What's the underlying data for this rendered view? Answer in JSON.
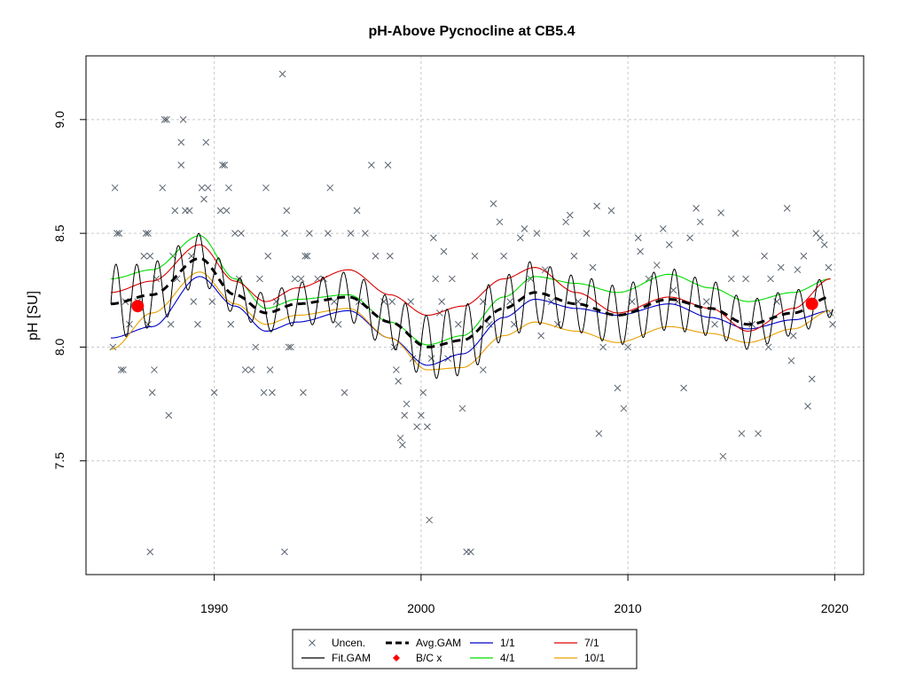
{
  "chart_data": {
    "type": "scatter",
    "title": "pH-Above Pycnocline at CB5.4",
    "xlabel": "",
    "ylabel": "pH [SU]",
    "xlim": [
      1983.8,
      2021.4
    ],
    "ylim": [
      7.0,
      9.28
    ],
    "x_ticks": [
      1990,
      2000,
      2010,
      2020
    ],
    "x_tick_labels": [
      "1990",
      "2000",
      "2010",
      "2020"
    ],
    "y_ticks": [
      7.5,
      8.0,
      8.5,
      9.0
    ],
    "y_tick_labels": [
      "7.5",
      "8.0",
      "8.5",
      "9.0"
    ],
    "grid": true,
    "legend_position": "bottom-center",
    "legend": [
      {
        "label": "Uncen.",
        "kind": "cross",
        "color": "#5a6470"
      },
      {
        "label": "Fit.GAM",
        "kind": "line",
        "color": "#000000"
      },
      {
        "label": "Avg.GAM",
        "kind": "dash",
        "color": "#000000"
      },
      {
        "label": "B/C x",
        "kind": "diamond",
        "color": "#ff0000"
      },
      {
        "label": "1/1",
        "kind": "line",
        "color": "#0000cc"
      },
      {
        "label": "4/1",
        "kind": "line",
        "color": "#00dd00"
      },
      {
        "label": "7/1",
        "kind": "line",
        "color": "#dd0000"
      },
      {
        "label": "10/1",
        "kind": "line",
        "color": "#e8a000"
      }
    ],
    "avg_gam": {
      "name": "Avg.GAM",
      "x": [
        1985.0,
        1987.0,
        1989.3,
        1991.0,
        1992.5,
        1994.0,
        1996.5,
        1998.5,
        2000.3,
        2002.0,
        2004.0,
        2005.5,
        2007.5,
        2009.5,
        2012.0,
        2014.0,
        2015.8,
        2018.0,
        2019.8
      ],
      "y": [
        8.19,
        8.23,
        8.39,
        8.23,
        8.15,
        8.19,
        8.22,
        8.11,
        8.0,
        8.03,
        8.17,
        8.24,
        8.19,
        8.14,
        8.21,
        8.17,
        8.1,
        8.15,
        8.22
      ]
    },
    "seasonal": [
      {
        "name": "1/1",
        "color": "#0000cc",
        "x": [
          1985.0,
          1987.0,
          1989.3,
          1991.0,
          1992.5,
          1994.0,
          1996.5,
          1998.5,
          2000.3,
          2002.0,
          2004.0,
          2005.5,
          2007.5,
          2009.5,
          2012.0,
          2014.0,
          2015.8,
          2018.0,
          2019.8
        ],
        "y": [
          8.04,
          8.09,
          8.31,
          8.18,
          8.07,
          8.11,
          8.16,
          8.04,
          7.92,
          7.97,
          8.13,
          8.21,
          8.17,
          8.14,
          8.19,
          8.13,
          8.08,
          8.12,
          8.16
        ]
      },
      {
        "name": "4/1",
        "color": "#00dd00",
        "x": [
          1985.0,
          1987.0,
          1989.3,
          1991.0,
          1992.5,
          1994.0,
          1996.5,
          1998.5,
          2000.3,
          2002.0,
          2004.0,
          2005.5,
          2007.5,
          2009.5,
          2012.0,
          2014.0,
          2015.8,
          2018.0,
          2019.8
        ],
        "y": [
          8.3,
          8.34,
          8.49,
          8.3,
          8.17,
          8.21,
          8.23,
          8.11,
          8.01,
          8.05,
          8.22,
          8.31,
          8.28,
          8.24,
          8.32,
          8.26,
          8.2,
          8.24,
          8.3
        ]
      },
      {
        "name": "7/1",
        "color": "#dd0000",
        "x": [
          1985.0,
          1987.0,
          1989.3,
          1991.0,
          1992.5,
          1994.0,
          1996.5,
          1998.5,
          2000.3,
          2002.0,
          2004.0,
          2005.5,
          2007.5,
          2009.5,
          2012.0,
          2014.0,
          2015.8,
          2018.0,
          2019.8
        ],
        "y": [
          8.24,
          8.29,
          8.45,
          8.29,
          8.2,
          8.26,
          8.34,
          8.23,
          8.14,
          8.18,
          8.3,
          8.35,
          8.24,
          8.15,
          8.22,
          8.17,
          8.07,
          8.17,
          8.3
        ]
      },
      {
        "name": "10/1",
        "color": "#e8a000",
        "x": [
          1985.0,
          1987.0,
          1989.3,
          1991.0,
          1992.5,
          1994.0,
          1996.5,
          1998.5,
          2000.3,
          2002.0,
          2004.0,
          2005.5,
          2007.5,
          2009.5,
          2012.0,
          2014.0,
          2015.8,
          2018.0,
          2019.8
        ],
        "y": [
          7.99,
          8.15,
          8.33,
          8.19,
          8.1,
          8.14,
          8.17,
          8.04,
          7.9,
          7.91,
          8.05,
          8.11,
          8.07,
          8.02,
          8.09,
          8.06,
          8.02,
          8.08,
          8.16
        ]
      }
    ],
    "fit_gam": {
      "name": "Fit.GAM",
      "start": 1985.0,
      "end": 2019.9,
      "period_years": 1.0
    },
    "bc_points": [
      {
        "x": 1986.3,
        "y": 8.18
      },
      {
        "x": 2018.9,
        "y": 8.19
      }
    ],
    "observations": [
      [
        1985.2,
        8.7
      ],
      [
        1985.3,
        8.5
      ],
      [
        1985.4,
        8.5
      ],
      [
        1985.1,
        8.0
      ],
      [
        1985.5,
        7.9
      ],
      [
        1985.6,
        7.9
      ],
      [
        1985.7,
        8.2
      ],
      [
        1985.9,
        8.1
      ],
      [
        1986.3,
        8.2
      ],
      [
        1986.6,
        8.4
      ],
      [
        1986.7,
        8.5
      ],
      [
        1986.8,
        8.5
      ],
      [
        1986.8,
        8.1
      ],
      [
        1986.9,
        8.4
      ],
      [
        1987.0,
        7.8
      ],
      [
        1987.1,
        7.9
      ],
      [
        1987.2,
        8.3
      ],
      [
        1986.9,
        7.1
      ],
      [
        1987.5,
        8.7
      ],
      [
        1987.6,
        9.0
      ],
      [
        1987.7,
        9.0
      ],
      [
        1987.8,
        7.7
      ],
      [
        1987.9,
        8.1
      ],
      [
        1988.0,
        8.4
      ],
      [
        1988.1,
        8.6
      ],
      [
        1988.2,
        8.3
      ],
      [
        1988.4,
        8.8
      ],
      [
        1988.4,
        8.9
      ],
      [
        1988.5,
        9.0
      ],
      [
        1988.6,
        8.6
      ],
      [
        1988.8,
        8.6
      ],
      [
        1988.9,
        8.4
      ],
      [
        1989.0,
        8.2
      ],
      [
        1989.2,
        8.1
      ],
      [
        1989.4,
        8.7
      ],
      [
        1989.5,
        8.65
      ],
      [
        1989.6,
        8.9
      ],
      [
        1989.7,
        8.7
      ],
      [
        1989.9,
        8.2
      ],
      [
        1990.0,
        7.8
      ],
      [
        1990.3,
        8.6
      ],
      [
        1990.4,
        8.8
      ],
      [
        1990.5,
        8.8
      ],
      [
        1990.6,
        8.6
      ],
      [
        1990.7,
        8.7
      ],
      [
        1990.8,
        8.1
      ],
      [
        1991.0,
        8.5
      ],
      [
        1991.2,
        8.3
      ],
      [
        1991.3,
        8.5
      ],
      [
        1991.5,
        7.9
      ],
      [
        1991.8,
        7.9
      ],
      [
        1992.0,
        8.0
      ],
      [
        1992.2,
        8.3
      ],
      [
        1992.4,
        7.8
      ],
      [
        1992.5,
        8.7
      ],
      [
        1992.6,
        8.4
      ],
      [
        1992.7,
        7.9
      ],
      [
        1992.8,
        7.8
      ],
      [
        1993.0,
        8.2
      ],
      [
        1993.3,
        9.2
      ],
      [
        1993.4,
        8.5
      ],
      [
        1993.5,
        8.6
      ],
      [
        1993.6,
        8.0
      ],
      [
        1993.7,
        8.0
      ],
      [
        1993.4,
        7.1
      ],
      [
        1993.9,
        8.3
      ],
      [
        1994.2,
        8.3
      ],
      [
        1994.3,
        7.8
      ],
      [
        1994.4,
        8.4
      ],
      [
        1994.5,
        8.4
      ],
      [
        1994.6,
        8.5
      ],
      [
        1995.0,
        8.3
      ],
      [
        1995.3,
        8.3
      ],
      [
        1995.5,
        8.5
      ],
      [
        1995.6,
        8.7
      ],
      [
        1995.8,
        8.2
      ],
      [
        1996.0,
        8.1
      ],
      [
        1996.3,
        7.8
      ],
      [
        1996.6,
        8.5
      ],
      [
        1996.9,
        8.6
      ],
      [
        1997.0,
        8.2
      ],
      [
        1997.3,
        8.5
      ],
      [
        1997.6,
        8.8
      ],
      [
        1997.8,
        8.4
      ],
      [
        1998.2,
        8.2
      ],
      [
        1998.4,
        8.8
      ],
      [
        1998.5,
        8.4
      ],
      [
        1998.6,
        8.2
      ],
      [
        1998.7,
        8.0
      ],
      [
        1998.8,
        7.9
      ],
      [
        1998.9,
        7.85
      ],
      [
        1999.0,
        7.6
      ],
      [
        1999.1,
        7.57
      ],
      [
        1999.2,
        7.7
      ],
      [
        1999.3,
        7.75
      ],
      [
        1999.5,
        8.2
      ],
      [
        1999.6,
        7.95
      ],
      [
        1999.8,
        7.65
      ],
      [
        2000.0,
        7.7
      ],
      [
        2000.1,
        7.8
      ],
      [
        2000.3,
        7.65
      ],
      [
        2000.4,
        7.24
      ],
      [
        2000.5,
        7.95
      ],
      [
        2000.6,
        8.48
      ],
      [
        2000.7,
        8.3
      ],
      [
        2001.0,
        8.2
      ],
      [
        2001.1,
        8.42
      ],
      [
        2001.5,
        8.3
      ],
      [
        2001.8,
        8.1
      ],
      [
        2002.0,
        7.73
      ],
      [
        2002.2,
        7.1
      ],
      [
        2002.4,
        7.1
      ],
      [
        2002.6,
        8.4
      ],
      [
        2003.0,
        8.2
      ],
      [
        2003.3,
        8.1
      ],
      [
        2003.5,
        8.63
      ],
      [
        2003.8,
        8.55
      ],
      [
        2004.0,
        8.4
      ],
      [
        2004.3,
        8.2
      ],
      [
        2004.5,
        8.1
      ],
      [
        2004.8,
        8.48
      ],
      [
        2005.0,
        8.52
      ],
      [
        2005.3,
        8.3
      ],
      [
        2005.6,
        8.5
      ],
      [
        2006.0,
        8.34
      ],
      [
        2006.3,
        8.2
      ],
      [
        2006.6,
        8.1
      ],
      [
        2007.0,
        8.55
      ],
      [
        2007.2,
        8.58
      ],
      [
        2007.4,
        8.4
      ],
      [
        2007.6,
        8.2
      ],
      [
        2008.0,
        8.5
      ],
      [
        2008.3,
        8.35
      ],
      [
        2008.5,
        8.62
      ],
      [
        2008.6,
        7.62
      ],
      [
        2008.8,
        8.0
      ],
      [
        2009.2,
        8.6
      ],
      [
        2009.5,
        7.82
      ],
      [
        2009.8,
        7.73
      ],
      [
        2010.2,
        8.2
      ],
      [
        2010.5,
        8.48
      ],
      [
        2010.6,
        8.42
      ],
      [
        2011.0,
        8.3
      ],
      [
        2011.4,
        8.36
      ],
      [
        2011.7,
        8.52
      ],
      [
        2012.0,
        8.45
      ],
      [
        2012.4,
        8.2
      ],
      [
        2012.7,
        7.82
      ],
      [
        2013.0,
        8.48
      ],
      [
        2013.3,
        8.61
      ],
      [
        2013.5,
        8.55
      ],
      [
        2013.8,
        8.2
      ],
      [
        2014.2,
        8.1
      ],
      [
        2014.5,
        8.59
      ],
      [
        2014.6,
        7.52
      ],
      [
        2015.0,
        8.3
      ],
      [
        2015.2,
        8.5
      ],
      [
        2015.5,
        7.62
      ],
      [
        2015.7,
        8.3
      ],
      [
        2016.0,
        8.1
      ],
      [
        2016.3,
        7.62
      ],
      [
        2016.6,
        8.4
      ],
      [
        2016.9,
        8.3
      ],
      [
        2017.2,
        8.2
      ],
      [
        2017.4,
        8.35
      ],
      [
        2017.7,
        8.61
      ],
      [
        2017.9,
        7.94
      ],
      [
        2018.2,
        8.34
      ],
      [
        2018.5,
        8.4
      ],
      [
        2018.7,
        7.74
      ],
      [
        2018.9,
        7.86
      ],
      [
        2019.1,
        8.5
      ],
      [
        2019.3,
        8.48
      ],
      [
        2019.5,
        8.45
      ],
      [
        2019.7,
        8.35
      ],
      [
        2019.8,
        8.15
      ],
      [
        2019.9,
        8.1
      ],
      [
        2000.9,
        8.15
      ],
      [
        2001.3,
        7.95
      ],
      [
        2003.0,
        7.9
      ],
      [
        2005.8,
        8.05
      ],
      [
        2010.0,
        8.0
      ],
      [
        2012.2,
        8.25
      ],
      [
        2016.8,
        8.0
      ],
      [
        2018.0,
        8.05
      ]
    ]
  }
}
